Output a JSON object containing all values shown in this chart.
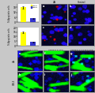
{
  "bar1_values": [
    18.0,
    4.5
  ],
  "bar1_colors": [
    "#ffff00",
    "#3333cc"
  ],
  "bar1_errors": [
    1.2,
    0.4
  ],
  "bar1_ylabel": "% Apoptotic cells",
  "bar1_ylim": [
    0,
    22
  ],
  "bar2_values": [
    15.0,
    4.0
  ],
  "bar2_colors": [
    "#ffff00",
    "#3333cc"
  ],
  "bar2_errors": [
    1.0,
    0.5
  ],
  "bar2_ylim": [
    0,
    20
  ],
  "legend_labels": [
    "Casp3",
    "Casp8"
  ],
  "title_za": "ZA",
  "title_control": "Control",
  "fig_bg": "#c8c8c8",
  "panel_bg": "#000000",
  "bar_panel_bg": "#ffffff",
  "col_titles_bot": [
    "Caspase 3 (red)",
    "Caspase 8 (red)",
    "Caspase 3+Casp 8 (red)"
  ],
  "row_labels_bot": [
    "ZA",
    "CIN-3"
  ],
  "seed": 123
}
